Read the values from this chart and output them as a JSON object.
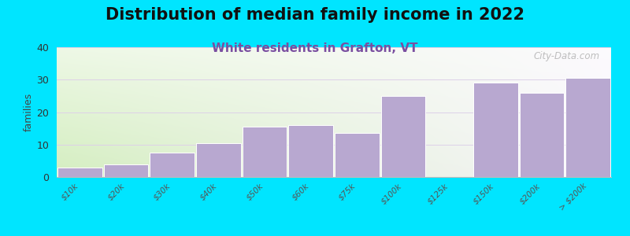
{
  "title": "Distribution of median family income in 2022",
  "subtitle": "White residents in Grafton, VT",
  "categories": [
    "$10k",
    "$20k",
    "$30k",
    "$40k",
    "$50k",
    "$60k",
    "$75k",
    "$100k",
    "$125k",
    "$150k",
    "$200k",
    "> $200k"
  ],
  "values": [
    3,
    4,
    7.5,
    10.5,
    15.5,
    16,
    13.5,
    25,
    0,
    29,
    26,
    30.5
  ],
  "bar_color": "#b8a8d0",
  "bar_edge_color": "#ffffff",
  "ylabel": "families",
  "ylim": [
    0,
    40
  ],
  "yticks": [
    0,
    10,
    20,
    30,
    40
  ],
  "background_color": "#00e5ff",
  "title_fontsize": 15,
  "subtitle_fontsize": 11,
  "subtitle_color": "#7a4fa0",
  "grid_color": "#ddd0e8",
  "watermark": "City-Data.com"
}
